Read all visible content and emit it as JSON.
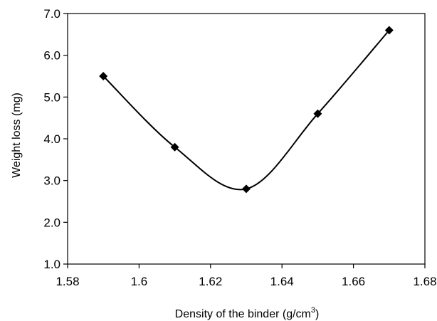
{
  "chart_data": {
    "type": "scatter",
    "title": "",
    "xlabel": "Density of the binder (g/cm",
    "xlabel_sup": "3",
    "xlabel_suffix": ")",
    "ylabel": "Weight loss (mg)",
    "xlim": [
      1.58,
      1.68
    ],
    "ylim": [
      1.0,
      7.0
    ],
    "x_ticks": [
      "1.58",
      "1.6",
      "1.62",
      "1.64",
      "1.66",
      "1.68"
    ],
    "y_ticks": [
      "1.0",
      "2.0",
      "3.0",
      "4.0",
      "5.0",
      "6.0",
      "7.0"
    ],
    "grid": false,
    "legend": "none",
    "marker": "diamond",
    "line": "smooth",
    "series": [
      {
        "x": [
          1.59,
          1.61,
          1.63,
          1.65,
          1.67
        ],
        "y": [
          5.5,
          3.8,
          2.8,
          4.6,
          6.6
        ]
      }
    ],
    "colors": {
      "line": "#000000",
      "marker": "#000000"
    }
  }
}
